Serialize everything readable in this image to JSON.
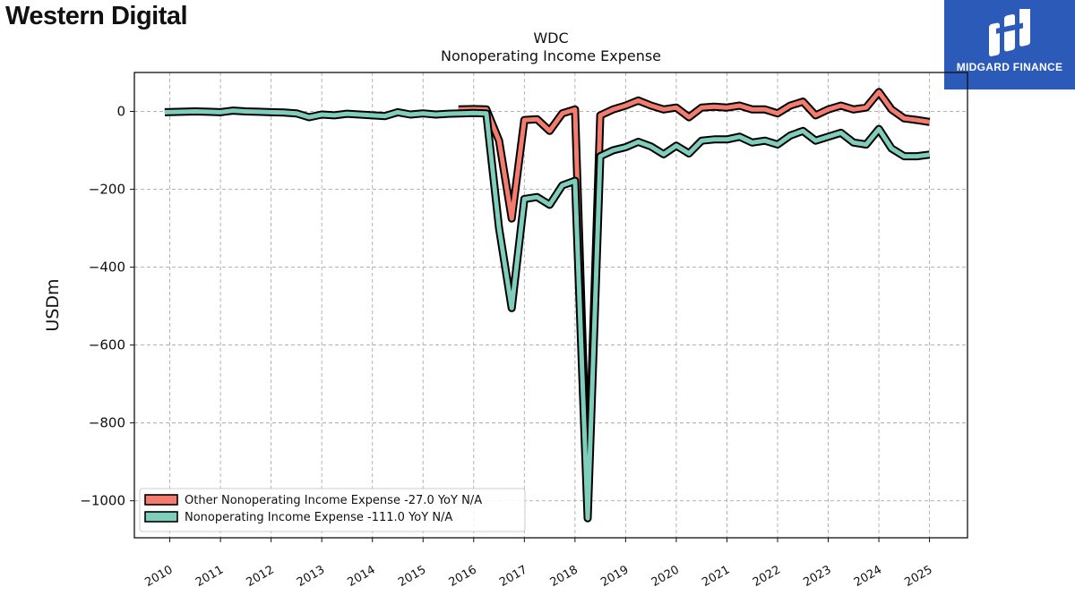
{
  "header": {
    "company_logo_text": "Western Digital",
    "brand_text": "MIDGARD FINANCE",
    "brand_color": "#2b5ab8"
  },
  "chart_data": {
    "type": "line",
    "title": "WDC",
    "subtitle": "Nonoperating Income Expense",
    "xlabel": "",
    "ylabel": "USDm",
    "xlim": [
      2009.3,
      2025.75
    ],
    "ylim": [
      -1095,
      100
    ],
    "x_ticks": [
      "2010",
      "2011",
      "2012",
      "2013",
      "2014",
      "2015",
      "2016",
      "2017",
      "2018",
      "2019",
      "2020",
      "2021",
      "2022",
      "2023",
      "2024",
      "2025"
    ],
    "y_ticks": [
      0,
      -200,
      -400,
      -600,
      -800,
      -1000
    ],
    "y_tick_labels": [
      "0",
      "−200",
      "−400",
      "−600",
      "−800",
      "−1000"
    ],
    "grid": true,
    "legend_position": "lower-left",
    "series": [
      {
        "name": "Other Nonoperating Income Expense",
        "legend_label": "Other Nonoperating Income Expense  -27.0 YoY N/A",
        "color": "#f47c6e",
        "points": [
          [
            2015.7,
            5
          ],
          [
            2016.0,
            6
          ],
          [
            2016.25,
            5
          ],
          [
            2016.5,
            -75
          ],
          [
            2016.75,
            -275
          ],
          [
            2017.0,
            -22
          ],
          [
            2017.25,
            -20
          ],
          [
            2017.5,
            -50
          ],
          [
            2017.75,
            -5
          ],
          [
            2018.0,
            5
          ],
          [
            2018.25,
            -1000
          ],
          [
            2018.5,
            -10
          ],
          [
            2018.75,
            5
          ],
          [
            2019.0,
            15
          ],
          [
            2019.25,
            28
          ],
          [
            2019.5,
            15
          ],
          [
            2019.75,
            5
          ],
          [
            2020.0,
            10
          ],
          [
            2020.25,
            -15
          ],
          [
            2020.5,
            10
          ],
          [
            2020.75,
            12
          ],
          [
            2021.0,
            10
          ],
          [
            2021.25,
            15
          ],
          [
            2021.5,
            5
          ],
          [
            2021.75,
            5
          ],
          [
            2022.0,
            -5
          ],
          [
            2022.25,
            15
          ],
          [
            2022.5,
            25
          ],
          [
            2022.75,
            -10
          ],
          [
            2023.0,
            5
          ],
          [
            2023.25,
            15
          ],
          [
            2023.5,
            5
          ],
          [
            2023.75,
            10
          ],
          [
            2024.0,
            50
          ],
          [
            2024.25,
            5
          ],
          [
            2024.5,
            -18
          ],
          [
            2024.75,
            -22
          ],
          [
            2025.0,
            -27
          ]
        ]
      },
      {
        "name": "Nonoperating Income Expense",
        "legend_label": "Nonoperating Income Expense  -111.0 YoY N/A",
        "color": "#7fcdbb",
        "points": [
          [
            2009.9,
            -2
          ],
          [
            2010.25,
            -1
          ],
          [
            2010.5,
            0
          ],
          [
            2010.75,
            -1
          ],
          [
            2011.0,
            -2
          ],
          [
            2011.25,
            2
          ],
          [
            2011.5,
            0
          ],
          [
            2011.75,
            -1
          ],
          [
            2012.0,
            -2
          ],
          [
            2012.25,
            -3
          ],
          [
            2012.5,
            -5
          ],
          [
            2012.75,
            -15
          ],
          [
            2013.0,
            -8
          ],
          [
            2013.25,
            -10
          ],
          [
            2013.5,
            -6
          ],
          [
            2013.75,
            -8
          ],
          [
            2014.0,
            -10
          ],
          [
            2014.25,
            -12
          ],
          [
            2014.5,
            -2
          ],
          [
            2014.75,
            -8
          ],
          [
            2015.0,
            -5
          ],
          [
            2015.25,
            -8
          ],
          [
            2015.5,
            -6
          ],
          [
            2015.75,
            -5
          ],
          [
            2016.0,
            -4
          ],
          [
            2016.25,
            -5
          ],
          [
            2016.5,
            -300
          ],
          [
            2016.75,
            -505
          ],
          [
            2017.0,
            -225
          ],
          [
            2017.25,
            -220
          ],
          [
            2017.5,
            -240
          ],
          [
            2017.75,
            -190
          ],
          [
            2018.0,
            -178
          ],
          [
            2018.25,
            -1045
          ],
          [
            2018.5,
            -115
          ],
          [
            2018.75,
            -100
          ],
          [
            2019.0,
            -92
          ],
          [
            2019.25,
            -78
          ],
          [
            2019.5,
            -90
          ],
          [
            2019.75,
            -110
          ],
          [
            2020.0,
            -88
          ],
          [
            2020.25,
            -108
          ],
          [
            2020.5,
            -75
          ],
          [
            2020.75,
            -72
          ],
          [
            2021.0,
            -72
          ],
          [
            2021.25,
            -65
          ],
          [
            2021.5,
            -80
          ],
          [
            2021.75,
            -75
          ],
          [
            2022.0,
            -85
          ],
          [
            2022.25,
            -62
          ],
          [
            2022.5,
            -50
          ],
          [
            2022.75,
            -75
          ],
          [
            2023.0,
            -65
          ],
          [
            2023.25,
            -55
          ],
          [
            2023.5,
            -80
          ],
          [
            2023.75,
            -85
          ],
          [
            2024.0,
            -45
          ],
          [
            2024.25,
            -95
          ],
          [
            2024.5,
            -115
          ],
          [
            2024.75,
            -115
          ],
          [
            2025.0,
            -111
          ]
        ]
      }
    ]
  }
}
